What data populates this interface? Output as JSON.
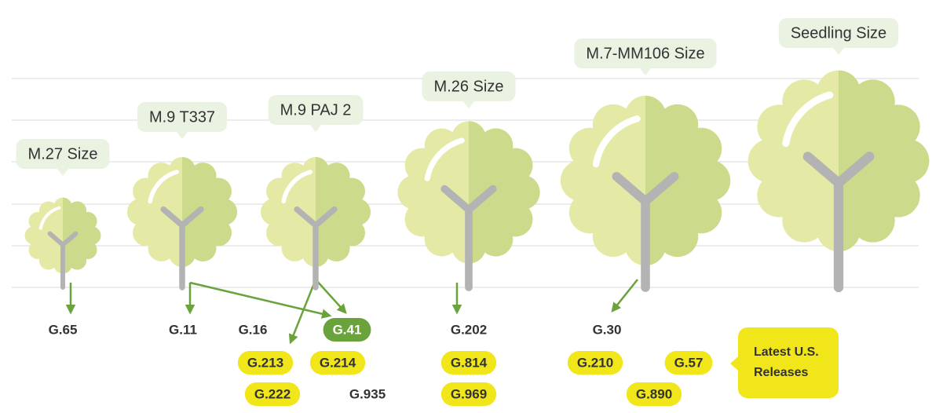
{
  "trees": [
    {
      "label": "M.27 Size"
    },
    {
      "label": "M.9 T337"
    },
    {
      "label": "M.9 PAJ 2"
    },
    {
      "label": "M.26 Size"
    },
    {
      "label": "M.7-MM106 Size"
    },
    {
      "label": "Seedling Size"
    }
  ],
  "rootstocks": [
    {
      "label": "G.65",
      "style": "plain"
    },
    {
      "label": "G.11",
      "style": "plain"
    },
    {
      "label": "G.16",
      "style": "plain"
    },
    {
      "label": "G.41",
      "style": "green"
    },
    {
      "label": "G.202",
      "style": "plain"
    },
    {
      "label": "G.30",
      "style": "plain"
    },
    {
      "label": "G.213",
      "style": "yellow"
    },
    {
      "label": "G.214",
      "style": "yellow"
    },
    {
      "label": "G.814",
      "style": "yellow"
    },
    {
      "label": "G.210",
      "style": "yellow"
    },
    {
      "label": "G.57",
      "style": "yellow"
    },
    {
      "label": "G.222",
      "style": "yellow"
    },
    {
      "label": "G.935",
      "style": "plain"
    },
    {
      "label": "G.969",
      "style": "yellow"
    },
    {
      "label": "G.890",
      "style": "yellow"
    }
  ],
  "callout": {
    "text": "Latest U.S. Releases"
  }
}
